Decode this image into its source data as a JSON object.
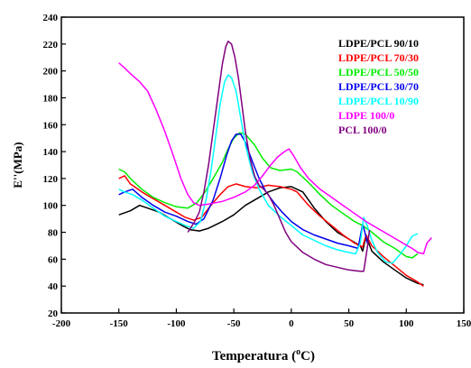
{
  "chart_data": {
    "type": "line",
    "title": "",
    "xlabel": "Temperatura (",
    "xlabel_sup": "o",
    "xlabel_unit": "C)",
    "ylabel": "E''(MPa)",
    "xlim": [
      -200,
      150
    ],
    "ylim": [
      20,
      240
    ],
    "x_ticks": [
      "-200",
      "-150",
      "-100",
      "-50",
      "0",
      "50",
      "100",
      "150"
    ],
    "y_ticks": [
      "20",
      "40",
      "60",
      "80",
      "100",
      "120",
      "140",
      "160",
      "180",
      "200",
      "220",
      "240"
    ],
    "legend_position": "top-right",
    "grid": false,
    "series": [
      {
        "name": "LDPE/PCL 90/10",
        "color": "#000000",
        "points": [
          [
            -150,
            93
          ],
          [
            -140,
            96
          ],
          [
            -132,
            100
          ],
          [
            -125,
            98
          ],
          [
            -115,
            95
          ],
          [
            -105,
            90
          ],
          [
            -95,
            85
          ],
          [
            -88,
            82
          ],
          [
            -80,
            81
          ],
          [
            -72,
            83
          ],
          [
            -60,
            88
          ],
          [
            -50,
            93
          ],
          [
            -40,
            100
          ],
          [
            -30,
            105
          ],
          [
            -20,
            110
          ],
          [
            -10,
            113
          ],
          [
            0,
            114
          ],
          [
            10,
            110
          ],
          [
            20,
            98
          ],
          [
            30,
            88
          ],
          [
            40,
            80
          ],
          [
            50,
            75
          ],
          [
            60,
            70
          ],
          [
            62,
            66
          ],
          [
            65,
            77
          ],
          [
            70,
            66
          ],
          [
            80,
            58
          ],
          [
            90,
            52
          ],
          [
            100,
            46
          ],
          [
            110,
            42
          ],
          [
            115,
            41
          ]
        ]
      },
      {
        "name": "LDPE/PCL 70/30",
        "color": "#ff0000",
        "points": [
          [
            -150,
            120
          ],
          [
            -145,
            122
          ],
          [
            -140,
            116
          ],
          [
            -130,
            110
          ],
          [
            -120,
            105
          ],
          [
            -110,
            100
          ],
          [
            -100,
            95
          ],
          [
            -92,
            91
          ],
          [
            -85,
            89
          ],
          [
            -78,
            91
          ],
          [
            -70,
            100
          ],
          [
            -62,
            108
          ],
          [
            -55,
            114
          ],
          [
            -48,
            116
          ],
          [
            -40,
            114
          ],
          [
            -30,
            113
          ],
          [
            -20,
            115
          ],
          [
            -10,
            114
          ],
          [
            0,
            112
          ],
          [
            5,
            110
          ],
          [
            15,
            100
          ],
          [
            25,
            92
          ],
          [
            35,
            85
          ],
          [
            45,
            78
          ],
          [
            55,
            72
          ],
          [
            62,
            69
          ],
          [
            65,
            78
          ],
          [
            70,
            70
          ],
          [
            80,
            62
          ],
          [
            90,
            55
          ],
          [
            100,
            48
          ],
          [
            110,
            43
          ],
          [
            115,
            40
          ]
        ]
      },
      {
        "name": "LDPE/PCL 50/50",
        "color": "#00ee00",
        "points": [
          [
            -150,
            127
          ],
          [
            -145,
            125
          ],
          [
            -140,
            120
          ],
          [
            -130,
            112
          ],
          [
            -120,
            106
          ],
          [
            -110,
            102
          ],
          [
            -100,
            99
          ],
          [
            -90,
            98
          ],
          [
            -82,
            102
          ],
          [
            -75,
            110
          ],
          [
            -68,
            120
          ],
          [
            -60,
            132
          ],
          [
            -55,
            142
          ],
          [
            -50,
            150
          ],
          [
            -45,
            154
          ],
          [
            -40,
            153
          ],
          [
            -32,
            145
          ],
          [
            -25,
            135
          ],
          [
            -18,
            128
          ],
          [
            -10,
            126
          ],
          [
            0,
            127
          ],
          [
            5,
            125
          ],
          [
            15,
            117
          ],
          [
            25,
            108
          ],
          [
            35,
            100
          ],
          [
            45,
            94
          ],
          [
            55,
            88
          ],
          [
            62,
            85
          ],
          [
            70,
            80
          ],
          [
            80,
            73
          ],
          [
            90,
            68
          ],
          [
            100,
            62
          ],
          [
            105,
            61
          ],
          [
            110,
            64
          ]
        ]
      },
      {
        "name": "LDPE/PCL 30/70",
        "color": "#0000ee",
        "points": [
          [
            -150,
            108
          ],
          [
            -145,
            110
          ],
          [
            -138,
            112
          ],
          [
            -130,
            106
          ],
          [
            -120,
            100
          ],
          [
            -110,
            95
          ],
          [
            -100,
            92
          ],
          [
            -90,
            88
          ],
          [
            -83,
            86
          ],
          [
            -76,
            90
          ],
          [
            -68,
            104
          ],
          [
            -62,
            120
          ],
          [
            -56,
            138
          ],
          [
            -52,
            148
          ],
          [
            -48,
            153
          ],
          [
            -44,
            153
          ],
          [
            -40,
            147
          ],
          [
            -34,
            133
          ],
          [
            -28,
            120
          ],
          [
            -22,
            110
          ],
          [
            -15,
            102
          ],
          [
            -8,
            95
          ],
          [
            0,
            88
          ],
          [
            10,
            82
          ],
          [
            20,
            78
          ],
          [
            30,
            75
          ],
          [
            40,
            72
          ],
          [
            50,
            70
          ],
          [
            58,
            68
          ],
          [
            62,
            86
          ],
          [
            64,
            80
          ],
          [
            66,
            72
          ]
        ]
      },
      {
        "name": "LDPE/PCL 10/90",
        "color": "#00ffff",
        "points": [
          [
            -150,
            112
          ],
          [
            -145,
            110
          ],
          [
            -138,
            108
          ],
          [
            -130,
            104
          ],
          [
            -120,
            98
          ],
          [
            -110,
            92
          ],
          [
            -100,
            88
          ],
          [
            -92,
            85
          ],
          [
            -85,
            83
          ],
          [
            -79,
            88
          ],
          [
            -74,
            105
          ],
          [
            -70,
            125
          ],
          [
            -66,
            150
          ],
          [
            -62,
            175
          ],
          [
            -58,
            192
          ],
          [
            -55,
            197
          ],
          [
            -52,
            195
          ],
          [
            -48,
            185
          ],
          [
            -44,
            165
          ],
          [
            -40,
            145
          ],
          [
            -34,
            125
          ],
          [
            -28,
            112
          ],
          [
            -20,
            100
          ],
          [
            -10,
            92
          ],
          [
            0,
            85
          ],
          [
            10,
            78
          ],
          [
            20,
            74
          ],
          [
            30,
            70
          ],
          [
            40,
            67
          ],
          [
            50,
            65
          ],
          [
            56,
            64
          ],
          [
            60,
            72
          ],
          [
            63,
            91
          ],
          [
            66,
            85
          ],
          [
            70,
            74
          ],
          [
            75,
            65
          ],
          [
            82,
            58
          ],
          [
            88,
            57
          ],
          [
            95,
            64
          ],
          [
            100,
            70
          ],
          [
            105,
            77
          ],
          [
            110,
            79
          ]
        ]
      },
      {
        "name": "LDPE 100/0",
        "color": "#ff00ff",
        "points": [
          [
            -150,
            206
          ],
          [
            -146,
            203
          ],
          [
            -140,
            198
          ],
          [
            -132,
            192
          ],
          [
            -125,
            185
          ],
          [
            -118,
            172
          ],
          [
            -110,
            155
          ],
          [
            -103,
            138
          ],
          [
            -96,
            120
          ],
          [
            -90,
            108
          ],
          [
            -85,
            102
          ],
          [
            -80,
            100
          ],
          [
            -72,
            101
          ],
          [
            -60,
            103
          ],
          [
            -50,
            106
          ],
          [
            -40,
            110
          ],
          [
            -32,
            115
          ],
          [
            -25,
            122
          ],
          [
            -18,
            130
          ],
          [
            -12,
            136
          ],
          [
            -6,
            140
          ],
          [
            -2,
            142
          ],
          [
            2,
            137
          ],
          [
            8,
            128
          ],
          [
            15,
            120
          ],
          [
            25,
            112
          ],
          [
            35,
            106
          ],
          [
            45,
            100
          ],
          [
            55,
            94
          ],
          [
            65,
            88
          ],
          [
            75,
            83
          ],
          [
            85,
            78
          ],
          [
            95,
            73
          ],
          [
            105,
            68
          ],
          [
            110,
            65
          ],
          [
            115,
            64
          ],
          [
            118,
            72
          ],
          [
            122,
            76
          ]
        ]
      },
      {
        "name": "PCL 100/0",
        "color": "#800080",
        "points": [
          [
            -90,
            80
          ],
          [
            -87,
            84
          ],
          [
            -84,
            88
          ],
          [
            -80,
            95
          ],
          [
            -76,
            110
          ],
          [
            -72,
            130
          ],
          [
            -68,
            155
          ],
          [
            -64,
            180
          ],
          [
            -60,
            205
          ],
          [
            -57,
            218
          ],
          [
            -55,
            222
          ],
          [
            -52,
            220
          ],
          [
            -49,
            210
          ],
          [
            -46,
            195
          ],
          [
            -43,
            175
          ],
          [
            -40,
            155
          ],
          [
            -36,
            135
          ],
          [
            -32,
            122
          ],
          [
            -28,
            115
          ],
          [
            -24,
            112
          ],
          [
            -20,
            108
          ],
          [
            -15,
            100
          ],
          [
            -10,
            90
          ],
          [
            -5,
            80
          ],
          [
            0,
            73
          ],
          [
            10,
            65
          ],
          [
            20,
            60
          ],
          [
            30,
            56
          ],
          [
            40,
            54
          ],
          [
            50,
            52
          ],
          [
            60,
            51
          ],
          [
            63,
            51
          ],
          [
            66,
            68
          ],
          [
            68,
            82
          ]
        ]
      }
    ]
  }
}
